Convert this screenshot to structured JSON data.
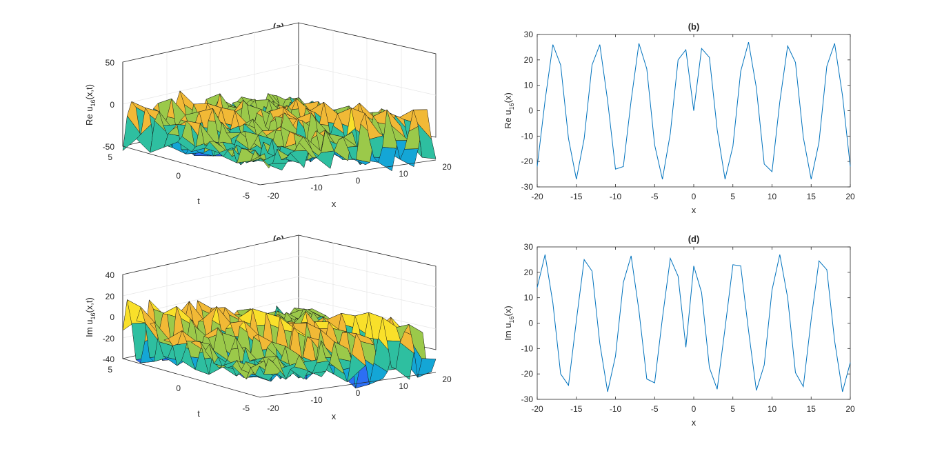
{
  "panels": {
    "a": {
      "title": "(a)",
      "zlabel": "Re u16(x,t)",
      "zlabel_parts": [
        "Re u",
        "16",
        "(x,t)"
      ],
      "zticks": [
        "50",
        "0",
        "-50"
      ],
      "tticks": [
        "5",
        "0",
        "-5"
      ],
      "xticks": [
        "-20",
        "-10",
        "0",
        "10",
        "20"
      ],
      "tlabel": "t",
      "xlabel": "x"
    },
    "c": {
      "title": "(c)",
      "zlabel": "Im u16(x,t)",
      "zlabel_parts": [
        "Im u",
        "16",
        "(x,t)"
      ],
      "zticks": [
        "40",
        "20",
        "0",
        "-20",
        "-40"
      ],
      "tticks": [
        "5",
        "0",
        "-5"
      ],
      "xticks": [
        "-20",
        "-10",
        "0",
        "10",
        "20"
      ],
      "tlabel": "t",
      "xlabel": "x"
    }
  },
  "surface_colormap": [
    "#3e26a8",
    "#2c6ff4",
    "#14a6d6",
    "#2ebfa0",
    "#9bc94a",
    "#f1b936",
    "#f9e02a",
    "#f9fb15"
  ],
  "chart_data": [
    {
      "panel": "b",
      "type": "line",
      "title": "(b)",
      "xlabel": "x",
      "ylabel": "Re u16(x)",
      "ylabel_parts": [
        "Re u",
        "16",
        "(x)"
      ],
      "xlim": [
        -20,
        20
      ],
      "ylim": [
        -30,
        30
      ],
      "xticks": [
        "-20",
        "-15",
        "-10",
        "-5",
        "0",
        "5",
        "10",
        "15",
        "20"
      ],
      "yticks": [
        "30",
        "20",
        "10",
        "0",
        "-10",
        "-20",
        "-30"
      ],
      "line_color": "#0072bd",
      "x": [
        -20,
        -19,
        -18,
        -17,
        -16,
        -15,
        -14,
        -13,
        -12,
        -11,
        -10,
        -9,
        -8,
        -7,
        -6,
        -5,
        -4,
        -3,
        -2,
        -1,
        0,
        1,
        2,
        3,
        4,
        5,
        6,
        7,
        8,
        9,
        10,
        11,
        12,
        13,
        14,
        15,
        16,
        17,
        18,
        19,
        20
      ],
      "y": [
        -22,
        4,
        26,
        18,
        -11,
        -27,
        -11,
        18,
        26,
        4,
        -23,
        -22,
        4,
        26.5,
        16.5,
        -13.5,
        -27,
        -9,
        20,
        24,
        0,
        24.5,
        21,
        -7.5,
        -27,
        -14,
        15.5,
        27,
        9,
        -21,
        -24,
        3.5,
        25.5,
        19,
        -10.5,
        -27,
        -12.5,
        17.5,
        26.5,
        6,
        -22
      ]
    },
    {
      "panel": "d",
      "type": "line",
      "title": "(d)",
      "xlabel": "x",
      "ylabel": "Im u16(x)",
      "ylabel_parts": [
        "Im u",
        "16",
        "(x)"
      ],
      "xlim": [
        -20,
        20
      ],
      "ylim": [
        -30,
        30
      ],
      "xticks": [
        "-20",
        "-15",
        "-10",
        "-5",
        "0",
        "5",
        "10",
        "15",
        "20"
      ],
      "yticks": [
        "30",
        "20",
        "10",
        "0",
        "-10",
        "-20",
        "-30"
      ],
      "line_color": "#0072bd",
      "x": [
        -20,
        -19,
        -18,
        -17,
        -16,
        -15,
        -14,
        -13,
        -12,
        -11,
        -10,
        -9,
        -8,
        -7,
        -6,
        -5,
        -4,
        -3,
        -2,
        -1,
        0,
        1,
        2,
        3,
        4,
        5,
        6,
        7,
        8,
        9,
        10,
        11,
        12,
        13,
        14,
        15,
        16,
        17,
        18,
        19,
        20
      ],
      "y": [
        14,
        27,
        8,
        -20,
        -24.5,
        1,
        25,
        20.5,
        -8,
        -27,
        -13,
        16,
        26.5,
        5,
        -22,
        -23.5,
        2,
        25.5,
        18.5,
        -9.5,
        22.5,
        12,
        -17.5,
        -26,
        -2,
        23,
        22.5,
        -3,
        -26.5,
        -16.5,
        13,
        27,
        10,
        -19.5,
        -25,
        1.5,
        24.5,
        21,
        -7,
        -27,
        -15.5
      ]
    }
  ]
}
